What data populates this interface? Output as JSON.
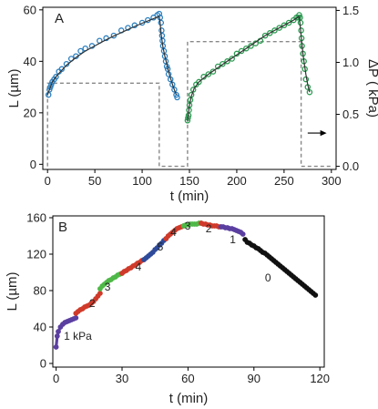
{
  "chart_data": [
    {
      "panel": "A",
      "type": "scatter",
      "xlabel": "t (min)",
      "ylabel": "L (µm)",
      "y2label": "ΔP ( kPa)",
      "xlim": [
        -5,
        305
      ],
      "ylim": [
        -2,
        61
      ],
      "y2lim": [
        -0.03,
        1.53
      ],
      "xticks": [
        0,
        50,
        100,
        150,
        200,
        250,
        300
      ],
      "yticks": [
        0,
        20,
        40,
        60
      ],
      "y2ticks": [
        0.0,
        0.5,
        1.0,
        1.5
      ],
      "y2ticklabels": [
        "0.0",
        "0.5",
        "1.0",
        "1.5"
      ],
      "series": [
        {
          "color": "#2b7fbf",
          "x": [
            1,
            2,
            3,
            4,
            5,
            7,
            9,
            12,
            15,
            20,
            25,
            30,
            35,
            40,
            47,
            55,
            62,
            70,
            78,
            85,
            92,
            100,
            106,
            112,
            116,
            118,
            119,
            120,
            120.5,
            121,
            121.5,
            122,
            123,
            124,
            125,
            126,
            127,
            128,
            130,
            132,
            134,
            136,
            137
          ],
          "y": [
            27,
            29,
            30,
            31,
            32,
            33,
            34,
            36,
            37,
            39,
            41,
            42,
            44,
            45,
            46,
            48,
            49,
            50,
            52,
            53,
            54,
            55,
            56,
            57,
            58,
            58.5,
            57,
            55,
            52,
            50,
            48,
            46,
            44,
            42,
            40,
            38,
            37,
            35,
            33,
            31,
            29,
            27,
            26
          ]
        },
        {
          "color": "#2a9a50",
          "x": [
            148,
            148.5,
            149,
            149.5,
            150,
            151,
            152,
            154,
            157,
            160,
            165,
            170,
            175,
            180,
            185,
            190,
            195,
            200,
            205,
            210,
            215,
            220,
            225,
            230,
            235,
            240,
            245,
            250,
            255,
            260,
            263,
            265,
            266,
            267,
            267.5,
            268,
            268.5,
            269,
            270,
            271,
            272,
            273,
            275,
            277
          ],
          "y": [
            17,
            18,
            19,
            21,
            23,
            25,
            27,
            29,
            31,
            32,
            34,
            35,
            36,
            38,
            39,
            40,
            41,
            43,
            44,
            45,
            46,
            47,
            48,
            50,
            51,
            52,
            53,
            54,
            55,
            56,
            57,
            57,
            58,
            57,
            55,
            52,
            49,
            46,
            43,
            40,
            37,
            33,
            30,
            28
          ]
        }
      ],
      "fit_curves": [
        {
          "color": "#333333",
          "x": [
            0,
            5,
            10,
            20,
            30,
            40,
            50,
            60,
            70,
            80,
            90,
            100,
            110,
            118
          ],
          "y": [
            27,
            32,
            34.5,
            38.5,
            41.5,
            44,
            46,
            48,
            49.8,
            51.5,
            53.2,
            54.8,
            56.3,
            57.5
          ]
        },
        {
          "color": "#333333",
          "x": [
            118,
            119,
            120,
            121,
            122,
            124,
            126,
            128,
            130,
            133,
            136
          ],
          "y": [
            57.5,
            55,
            51,
            48,
            45.5,
            42,
            39,
            36,
            33.5,
            30,
            27
          ]
        },
        {
          "color": "#333333",
          "x": [
            148,
            149,
            150,
            152,
            155,
            160,
            170,
            180,
            190,
            200,
            210,
            220,
            230,
            240,
            250,
            260,
            266
          ],
          "y": [
            17,
            20,
            23,
            26.5,
            29.5,
            32,
            35,
            37.5,
            40,
            42.5,
            45,
            47.5,
            50,
            52,
            54,
            56,
            57.5
          ]
        },
        {
          "color": "#333333",
          "x": [
            266,
            267,
            268,
            269,
            270,
            271,
            273,
            275,
            277
          ],
          "y": [
            57.5,
            54,
            50,
            46.5,
            43,
            40,
            35,
            31,
            28
          ]
        }
      ],
      "pressure_step": {
        "color": "#888888",
        "x": [
          0,
          0,
          118,
          118,
          148,
          148,
          268,
          268,
          300
        ],
        "y": [
          0,
          0.8,
          0.8,
          0,
          0,
          1.2,
          1.2,
          0,
          0
        ]
      },
      "arrow": {
        "from": [
          275,
          0.32
        ],
        "to": [
          295,
          0.32
        ]
      }
    },
    {
      "panel": "B",
      "type": "scatter",
      "xlabel": "t (min)",
      "ylabel": "L (µm)",
      "xlim": [
        -1.5,
        122
      ],
      "ylim": [
        -4,
        162
      ],
      "xticks": [
        0,
        30,
        60,
        90,
        120
      ],
      "yticks": [
        0,
        40,
        80,
        120,
        160
      ],
      "series": [
        {
          "color": "#5b3fa0",
          "x": [
            0,
            0.5,
            1,
            2,
            3,
            4,
            5,
            6,
            7,
            8,
            9
          ],
          "y": [
            18,
            30,
            35,
            40,
            43,
            45,
            46,
            47,
            48,
            49,
            50
          ]
        },
        {
          "color": "#d03a2a",
          "x": [
            9,
            10,
            11,
            12,
            13,
            14,
            15,
            16,
            17,
            18,
            19,
            20
          ],
          "y": [
            55,
            57,
            59,
            60,
            62,
            63,
            64,
            66,
            68,
            71,
            74,
            77
          ]
        },
        {
          "color": "#4fb848",
          "x": [
            20,
            21,
            22,
            23,
            24,
            25,
            26,
            27,
            28,
            29,
            30
          ],
          "y": [
            82,
            85,
            87,
            89,
            91,
            92,
            94,
            95,
            97,
            98,
            99
          ]
        },
        {
          "color": "#d03a2a",
          "x": [
            30,
            31,
            32,
            33,
            34,
            35,
            36,
            37,
            38,
            39,
            40
          ],
          "y": [
            99,
            101,
            102,
            104,
            105,
            107,
            108,
            110,
            111,
            113,
            114
          ]
        },
        {
          "color": "#2e4a9a",
          "x": [
            40,
            41,
            42,
            43,
            44,
            45,
            46,
            47,
            48,
            49,
            50
          ],
          "y": [
            114,
            116,
            118,
            120,
            122,
            125,
            127,
            130,
            132,
            135,
            137
          ]
        },
        {
          "color": "#d03a2a",
          "x": [
            50,
            51,
            52,
            53,
            54,
            55,
            56,
            57,
            58
          ],
          "y": [
            137,
            140,
            142,
            144,
            146,
            148,
            149,
            150,
            151
          ]
        },
        {
          "color": "#4fb848",
          "x": [
            58,
            59,
            60,
            61,
            62,
            63,
            64,
            65,
            66
          ],
          "y": [
            151,
            152,
            152,
            153,
            153,
            153,
            153,
            154,
            154
          ]
        },
        {
          "color": "#d03a2a",
          "x": [
            66,
            67,
            68,
            69,
            70,
            71,
            72,
            73,
            74,
            75
          ],
          "y": [
            154,
            153,
            153,
            152,
            152,
            151,
            151,
            151,
            150,
            150
          ]
        },
        {
          "color": "#5b3fa0",
          "x": [
            75,
            76,
            77,
            78,
            79,
            80,
            81,
            82,
            83,
            84,
            85
          ],
          "y": [
            150,
            150,
            149,
            149,
            148,
            148,
            147,
            146,
            145,
            144,
            142
          ]
        },
        {
          "color": "#111111",
          "x": [
            86,
            87,
            88,
            89,
            90,
            91,
            92,
            93,
            94,
            95,
            96,
            97,
            98,
            99,
            100,
            101,
            102,
            103,
            104,
            105,
            106,
            107,
            108,
            109,
            110,
            111,
            112,
            113,
            114,
            115,
            116,
            117,
            118
          ],
          "y": [
            136,
            133,
            132,
            130,
            129,
            127,
            126,
            124,
            122,
            121,
            119,
            117,
            115,
            113,
            111,
            109,
            107,
            105,
            103,
            101,
            99,
            97,
            95,
            93,
            91,
            89,
            87,
            85,
            83,
            81,
            79,
            77,
            75
          ]
        }
      ],
      "annotations": [
        {
          "text": "1 kPa",
          "x": 3.5,
          "y": 26
        },
        {
          "text": "2",
          "x": 15,
          "y": 62
        },
        {
          "text": "3",
          "x": 22,
          "y": 80
        },
        {
          "text": "4",
          "x": 36,
          "y": 102
        },
        {
          "text": "5",
          "x": 46,
          "y": 124
        },
        {
          "text": "4",
          "x": 52,
          "y": 140
        },
        {
          "text": "3",
          "x": 58.5,
          "y": 147
        },
        {
          "text": "2",
          "x": 68,
          "y": 144
        },
        {
          "text": "1",
          "x": 79,
          "y": 132
        },
        {
          "text": "0",
          "x": 95,
          "y": 90
        }
      ]
    }
  ]
}
